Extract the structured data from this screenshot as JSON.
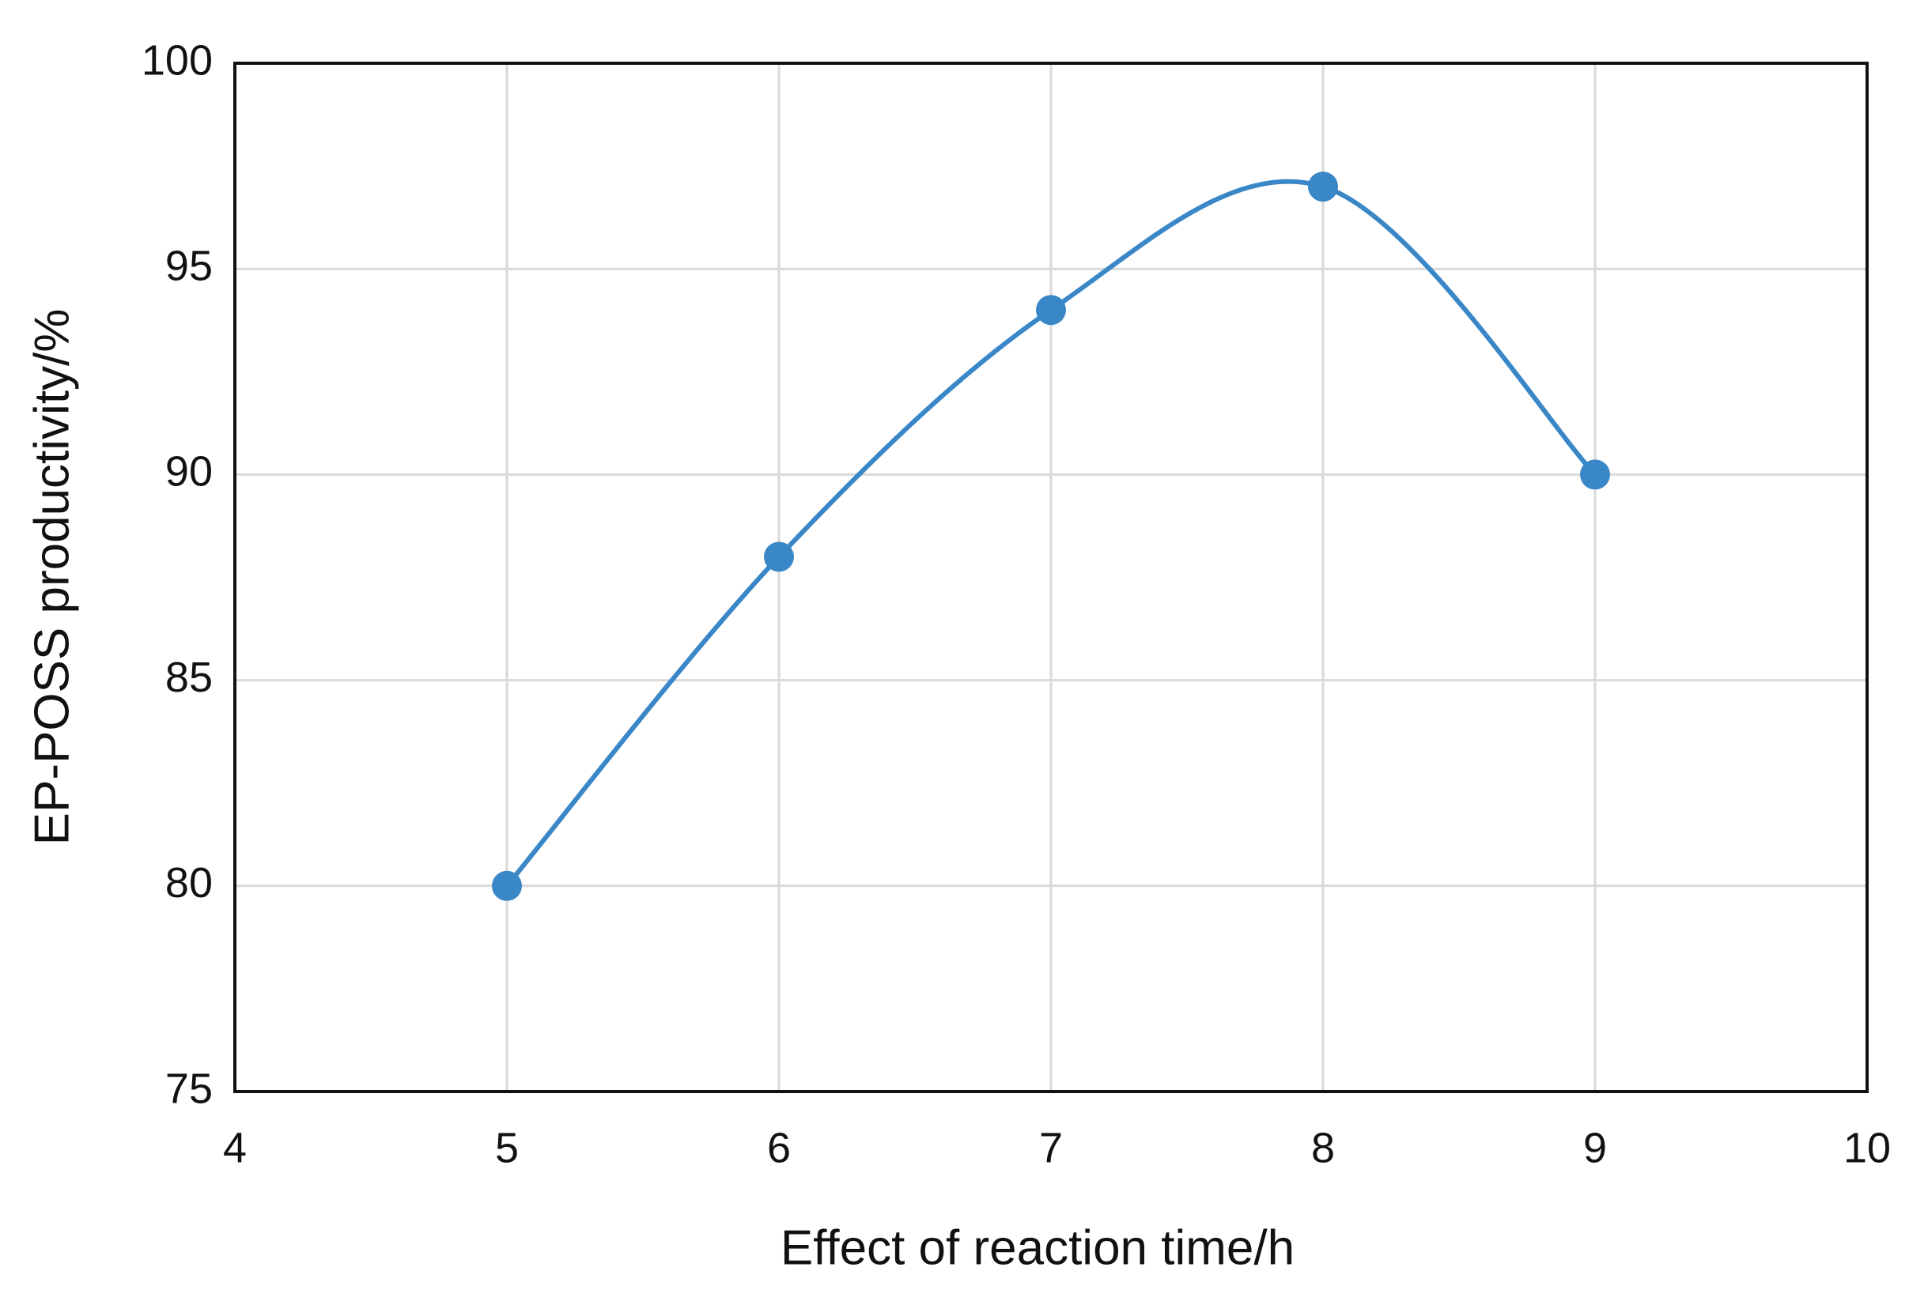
{
  "chart_data": {
    "type": "line",
    "x_label": "Effect of reaction time/h",
    "y_label": "EP-POSS productivity/%",
    "x": [
      5,
      6,
      7,
      8,
      9
    ],
    "values": [
      80,
      88,
      94,
      97,
      90
    ],
    "color": "#3a87c8",
    "smooth": true,
    "xlim": [
      4,
      10
    ],
    "xticks": [
      4,
      5,
      6,
      7,
      8,
      9,
      10
    ],
    "ylim": [
      75,
      100
    ],
    "yticks": [
      75,
      80,
      85,
      90,
      95,
      100
    ],
    "grid": true
  }
}
